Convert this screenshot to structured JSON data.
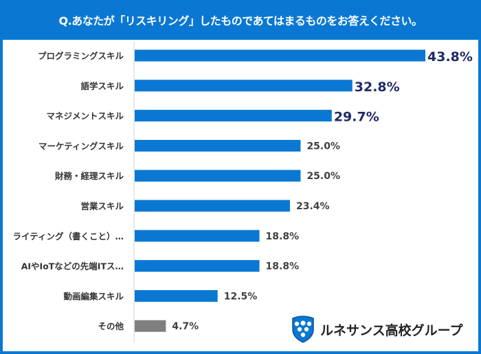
{
  "header": {
    "title": "Q.あなたが「リスキリング」したものであてはまるものをお答えください。"
  },
  "chart_data": {
    "type": "bar",
    "orientation": "horizontal",
    "title": "Q.あなたが「リスキリング」したものであてはまるものをお答えください。",
    "categories": [
      "プログラミングスキル",
      "語学スキル",
      "マネジメントスキル",
      "マーケティングスキル",
      "財務・経理スキル",
      "営業スキル",
      "ライティング（書くこと）…",
      "AIやIoTなどの先端ITス…",
      "動画編集スキル",
      "その他"
    ],
    "values": [
      43.8,
      32.8,
      29.7,
      25.0,
      25.0,
      23.4,
      18.8,
      18.8,
      12.5,
      4.7
    ],
    "labels": [
      "43.8%",
      "32.8%",
      "29.7%",
      "25.0%",
      "25.0%",
      "23.4%",
      "18.8%",
      "18.8%",
      "12.5%",
      "4.7%"
    ],
    "unit": "%",
    "xlim": [
      0,
      43.8
    ],
    "grid": false,
    "colors": {
      "bar": "#0a78d2",
      "other": "#7f7f7f",
      "highlight_label": "#1f2a66",
      "label": "#404040"
    },
    "highlight_top": 3
  },
  "logo": {
    "text": "ルネサンス高校グループ"
  }
}
